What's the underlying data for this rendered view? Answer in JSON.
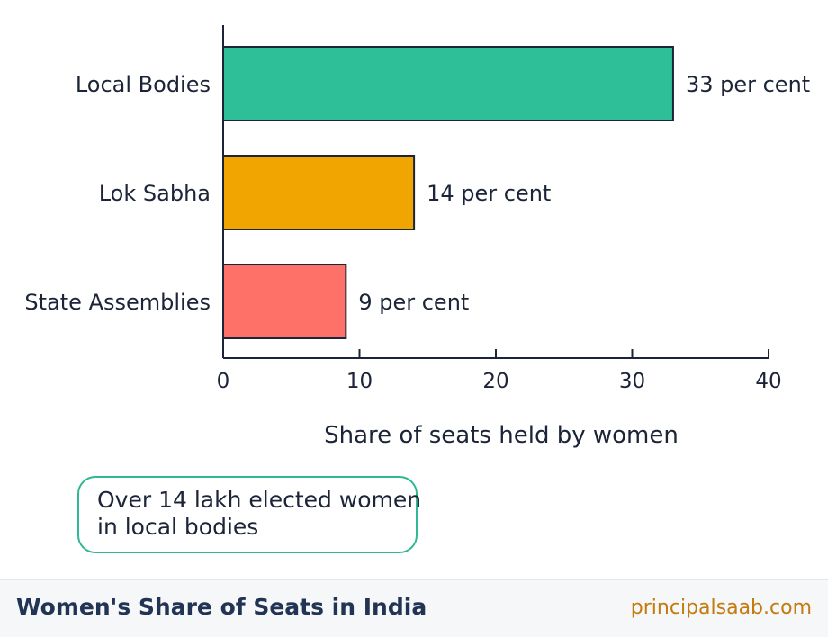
{
  "chart_data": {
    "type": "bar",
    "orientation": "horizontal",
    "categories": [
      "Local Bodies",
      "Lok Sabha",
      "State Assemblies"
    ],
    "values": [
      33,
      14,
      9
    ],
    "data_labels": [
      "33 per cent",
      "14 per cent",
      "9 per cent"
    ],
    "xlabel": "Share of seats held by women",
    "ylabel": "",
    "xlim": [
      0,
      40
    ],
    "x_ticks": [
      0,
      10,
      20,
      30,
      40
    ],
    "grid": false,
    "colors": [
      "#2fbf98",
      "#f0a500",
      "#fd7169"
    ],
    "edge_color": "#1c2438"
  },
  "callout": {
    "line1": "Over 14 lakh elected women",
    "line2": "in local bodies",
    "border_color": "#2fb893"
  },
  "footer": {
    "title": "Women's Share of Seats in India",
    "site": "principalsaab.com"
  }
}
